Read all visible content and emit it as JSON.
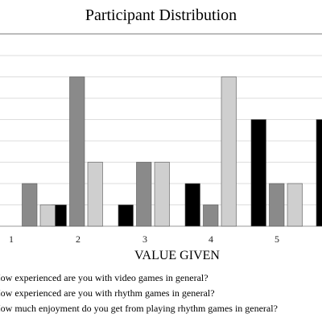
{
  "chart_data": {
    "type": "bar",
    "title": "Participant Distribution",
    "xlabel": "VALUE GIVEN",
    "ylabel": "",
    "categories": [
      "1",
      "2",
      "3",
      "4",
      "5"
    ],
    "ylim": [
      0,
      9
    ],
    "grid": true,
    "legend_position": "bottom",
    "series": [
      {
        "name": "How experienced are you with video games in general?",
        "color": "#000000",
        "values": [
          0,
          1,
          1,
          2,
          5
        ]
      },
      {
        "name": "How experienced are you with rhythm games in general?",
        "color": "#8a8a8a",
        "values": [
          2,
          7,
          3,
          1,
          2
        ]
      },
      {
        "name": "How much enjoyment do you get from playing rhythm games in general?",
        "color": "#cfcfcf",
        "values": [
          1,
          3,
          3,
          7,
          2
        ]
      }
    ]
  },
  "extra_bar": {
    "series": 0,
    "value": 5
  }
}
